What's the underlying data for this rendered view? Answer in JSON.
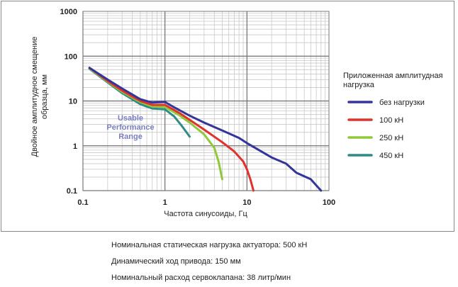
{
  "chart_data": {
    "type": "line",
    "x_scale": "log",
    "y_scale": "log",
    "xlim": [
      0.1,
      100
    ],
    "ylim": [
      0.1,
      1000
    ],
    "xlabel": "Частота синусоиды, Гц",
    "ylabel": "Двойное амплитудное смещение образца, мм",
    "x_ticks": [
      "0.1",
      "1",
      "10",
      "100"
    ],
    "y_ticks": [
      "0.1",
      "1",
      "10",
      "100",
      "1000"
    ],
    "grid": true,
    "legend_title": "Приложенная амплитудная нагрузка",
    "legend_position": "right",
    "annotation": "Usable Performance Range",
    "series": [
      {
        "name": "без нагрузки",
        "color": "#33359a",
        "points": [
          [
            0.12,
            55
          ],
          [
            0.2,
            30
          ],
          [
            0.3,
            19
          ],
          [
            0.5,
            11
          ],
          [
            0.7,
            9.2
          ],
          [
            1,
            9.5
          ],
          [
            1.3,
            7.2
          ],
          [
            2,
            4.7
          ],
          [
            3,
            3.3
          ],
          [
            5,
            2.2
          ],
          [
            8,
            1.5
          ],
          [
            10,
            1.15
          ],
          [
            20,
            0.55
          ],
          [
            30,
            0.4
          ],
          [
            40,
            0.25
          ],
          [
            60,
            0.18
          ],
          [
            80,
            0.1
          ]
        ]
      },
      {
        "name": "100 кН",
        "color": "#e0322b",
        "points": [
          [
            0.12,
            55
          ],
          [
            0.2,
            28
          ],
          [
            0.3,
            17
          ],
          [
            0.5,
            10
          ],
          [
            0.7,
            8.2
          ],
          [
            1,
            8.2
          ],
          [
            1.5,
            5.4
          ],
          [
            2,
            3.8
          ],
          [
            3,
            2.3
          ],
          [
            5,
            1.2
          ],
          [
            7,
            0.75
          ],
          [
            9,
            0.45
          ],
          [
            10,
            0.3
          ],
          [
            11,
            0.18
          ],
          [
            12,
            0.1
          ]
        ]
      },
      {
        "name": "250 кН",
        "color": "#8fc83a",
        "points": [
          [
            0.12,
            53
          ],
          [
            0.2,
            27
          ],
          [
            0.3,
            16
          ],
          [
            0.5,
            9.5
          ],
          [
            0.7,
            7.5
          ],
          [
            1,
            7.4
          ],
          [
            1.5,
            4.8
          ],
          [
            2,
            3.3
          ],
          [
            3,
            1.8
          ],
          [
            4,
            0.9
          ],
          [
            4.5,
            0.45
          ],
          [
            5,
            0.18
          ]
        ]
      },
      {
        "name": "450 кН",
        "color": "#2e8c86",
        "points": [
          [
            0.12,
            52
          ],
          [
            0.2,
            26
          ],
          [
            0.3,
            15
          ],
          [
            0.5,
            8.5
          ],
          [
            0.7,
            6.8
          ],
          [
            1,
            6.5
          ],
          [
            1.3,
            4.5
          ],
          [
            1.6,
            2.8
          ],
          [
            2,
            1.6
          ]
        ]
      }
    ]
  },
  "specs": [
    "Номинальная статическая нагрузка актуатора: 500 кН",
    "Динамический ход привода: 150 мм",
    "Номинальный расход сервоклапана: 38 литр/мин"
  ]
}
